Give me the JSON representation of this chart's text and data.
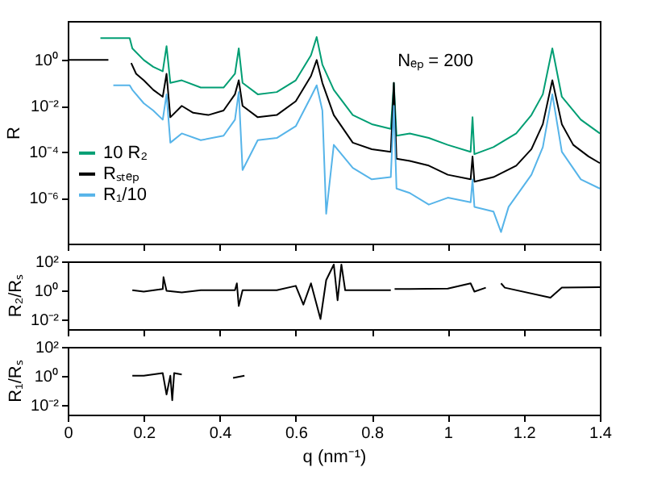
{
  "chart_data": [
    {
      "type": "line",
      "ylabel": "R",
      "log": true,
      "legend": "left",
      "tick_labels": "y",
      "xlim": [
        0,
        1.4
      ],
      "xticks": [
        0,
        0.2,
        0.4,
        0.6,
        0.8,
        1,
        1.2,
        1.4
      ],
      "ylim": [
        1e-08,
        50
      ],
      "yticks": [
        {
          "value": 1,
          "label": "10⁰"
        },
        {
          "value": 0.01,
          "label": "10⁻²"
        },
        {
          "value": 0.0001,
          "label": "10⁻⁴"
        },
        {
          "value": 1e-06,
          "label": "10⁻⁶"
        }
      ],
      "annotations": [
        "Nₑₚ = 200"
      ],
      "series": [
        {
          "name": "10 R₂",
          "color": "#009e73",
          "x": [
            0.086,
            0.163,
            0.17,
            0.2,
            0.225,
            0.25,
            0.26,
            0.27,
            0.3,
            0.35,
            0.41,
            0.44,
            0.45,
            0.46,
            0.5,
            0.55,
            0.6,
            0.64,
            0.655,
            0.67,
            0.7,
            0.75,
            0.8,
            0.85,
            0.858,
            0.865,
            0.9,
            0.95,
            1.0,
            1.06,
            1.065,
            1.07,
            1.12,
            1.18,
            1.22,
            1.25,
            1.275,
            1.3,
            1.35,
            1.4
          ],
          "values": [
            8.9,
            8.9,
            3.2,
            1,
            0.5,
            0.32,
            4,
            0.1,
            0.13,
            0.063,
            0.063,
            0.25,
            3.2,
            0.1,
            0.032,
            0.04,
            0.13,
            1.6,
            10,
            0.63,
            0.05,
            0.004,
            0.0016,
            0.001,
            0.1,
            0.0005,
            0.00063,
            0.0004,
            0.0002,
            0.0001,
            0.0032,
            7.9e-05,
            0.00016,
            0.00063,
            0.004,
            0.032,
            3.2,
            0.025,
            0.0025,
            0.00063
          ]
        },
        {
          "name": "Rₛₜₑₚ",
          "color": "#000000",
          "x": [
            0,
            0.107,
            0.14,
            0.167,
            0.18,
            0.2,
            0.225,
            0.25,
            0.26,
            0.27,
            0.3,
            0.33,
            0.37,
            0.41,
            0.44,
            0.45,
            0.46,
            0.5,
            0.55,
            0.6,
            0.64,
            0.655,
            0.67,
            0.7,
            0.75,
            0.8,
            0.85,
            0.858,
            0.865,
            0.9,
            0.95,
            1.0,
            1.06,
            1.065,
            1.07,
            1.12,
            1.18,
            1.22,
            1.25,
            1.275,
            1.3,
            1.33,
            1.37,
            1.4
          ],
          "values": [
            1,
            1,
            null,
            0.74,
            0.25,
            0.13,
            0.05,
            0.025,
            0.25,
            0.0032,
            0.01,
            0.005,
            0.004,
            0.0063,
            0.032,
            0.13,
            0.01,
            0.0032,
            0.004,
            0.016,
            0.2,
            1,
            0.1,
            0.004,
            0.00025,
            0.00013,
            0.0001,
            0.1,
            5e-05,
            4e-05,
            2.5e-05,
            1e-05,
            6.3e-06,
            6.3e-05,
            5e-06,
            7.9e-06,
            2.5e-05,
            0.00013,
            0.0016,
            0.13,
            0.0016,
            0.0002,
            6.3e-05,
            3.2e-05
          ]
        },
        {
          "name": "R₁/10",
          "color": "#56b4e9",
          "x": [
            0.12,
            0.163,
            0.17,
            0.2,
            0.225,
            0.25,
            0.26,
            0.27,
            0.3,
            0.35,
            0.41,
            0.44,
            0.45,
            0.46,
            0.5,
            0.55,
            0.6,
            0.64,
            0.655,
            0.67,
            0.68,
            0.7,
            0.75,
            0.8,
            0.85,
            0.858,
            0.865,
            0.9,
            0.95,
            1.0,
            1.06,
            1.065,
            1.07,
            1.12,
            1.14,
            1.16,
            1.22,
            1.25,
            1.275,
            1.3,
            1.35,
            1.4
          ],
          "values": [
            0.079,
            0.079,
            0.05,
            0.013,
            0.0063,
            0.0025,
            0.032,
            0.00025,
            0.00063,
            0.00032,
            0.0005,
            0.0025,
            0.04,
            1.6e-05,
            0.00032,
            0.0004,
            0.0013,
            0.025,
            0.079,
            0.0063,
            2e-07,
            0.0002,
            2e-05,
            6.3e-06,
            7.9e-06,
            0.01,
            2.5e-06,
            1.6e-06,
            5e-07,
            1e-06,
            6.3e-07,
            6.3e-06,
            4e-07,
            2.5e-07,
            3.2e-08,
            4e-07,
            1e-05,
            0.00016,
            0.032,
            0.0001,
            6.3e-06,
            2.5e-06
          ]
        }
      ]
    },
    {
      "type": "line",
      "ylabel": "R₂/Rₛ",
      "log": true,
      "tick_labels": "y",
      "xlim": [
        0,
        1.4
      ],
      "xticks": [
        0,
        0.2,
        0.4,
        0.6,
        0.8,
        1,
        1.2,
        1.4
      ],
      "ylim": [
        0.002,
        100
      ],
      "yticks": [
        {
          "value": 100,
          "label": "10²"
        },
        {
          "value": 1,
          "label": "10⁰"
        },
        {
          "value": 0.01,
          "label": "10⁻²"
        }
      ],
      "series": [
        {
          "color": "#000000",
          "x": [
            0.17,
            0.2,
            0.25,
            0.252,
            0.26,
            0.3,
            0.35,
            0.44,
            0.445,
            0.45,
            0.46,
            0.55,
            0.6,
            0.62,
            0.64,
            0.665,
            0.68,
            0.7,
            0.71,
            0.72,
            0.73,
            0.85,
            0.855,
            0.86,
            1.0,
            1.06,
            1.07,
            1.1,
            1.12,
            1.14,
            1.15,
            1.27,
            1.3,
            1.4
          ],
          "values": [
            1,
            0.8,
            1.2,
            8,
            0.9,
            0.7,
            1,
            1,
            3,
            0.08,
            1,
            1,
            2,
            0.1,
            3,
            0.01,
            5,
            60,
            0.2,
            60,
            1,
            1,
            null,
            1.2,
            1.3,
            3,
            0.8,
            1.5,
            null,
            3,
            1.5,
            0.3,
            1.5,
            1.6
          ]
        }
      ]
    },
    {
      "type": "line",
      "ylabel": "R₁/Rₛ",
      "xlabel": "q (nm⁻¹)",
      "log": true,
      "xlim": [
        0,
        1.4
      ],
      "xticks": [
        0,
        0.2,
        0.4,
        0.6,
        0.8,
        1,
        1.2,
        1.4
      ],
      "ylim": [
        0.002,
        100
      ],
      "yticks": [
        {
          "value": 100,
          "label": "10²"
        },
        {
          "value": 1,
          "label": "10⁰"
        },
        {
          "value": 0.01,
          "label": "10⁻²"
        }
      ],
      "series": [
        {
          "color": "#000000",
          "x": [
            0.17,
            0.2,
            0.25,
            0.26,
            0.27,
            0.275,
            0.28,
            0.3,
            0.31,
            0.435,
            0.465
          ],
          "values": [
            1,
            1,
            1.5,
            0.05,
            1,
            0.02,
            1.5,
            1.2,
            null,
            0.7,
            1
          ]
        }
      ]
    }
  ]
}
